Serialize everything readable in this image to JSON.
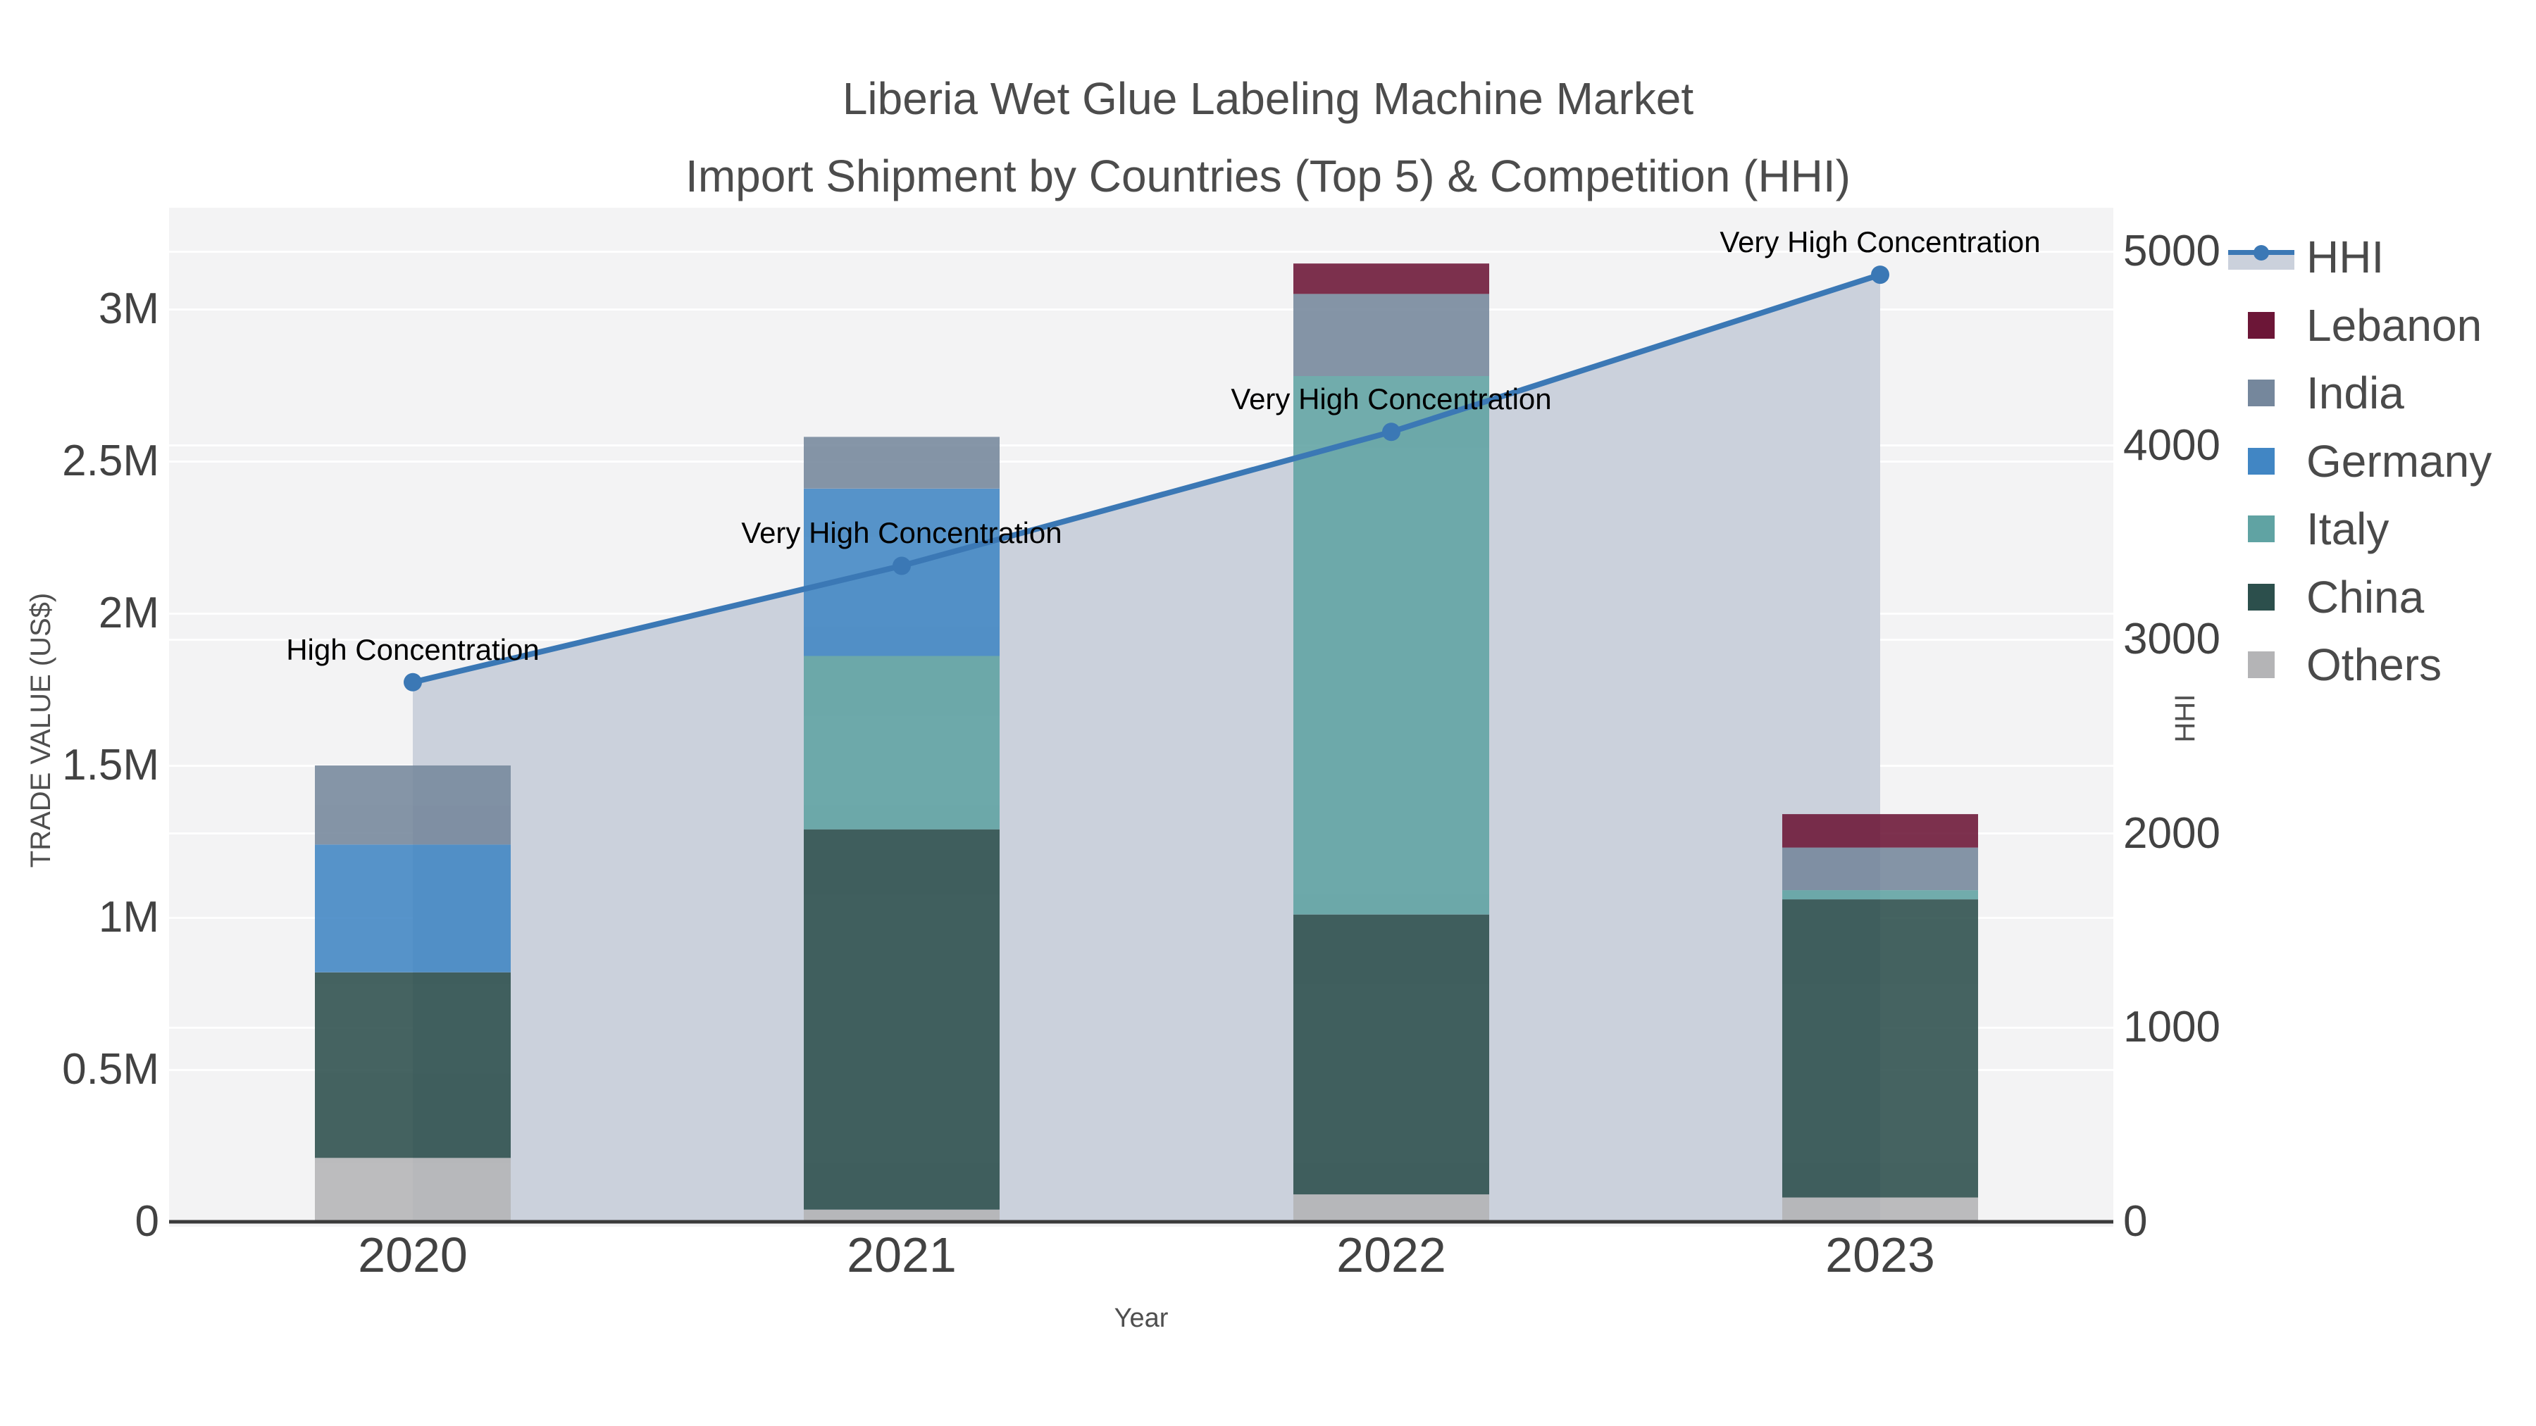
{
  "title": {
    "line1": "Liberia Wet Glue Labeling Machine Market",
    "line2": "Import Shipment by Countries (Top 5) & Competition (HHI)"
  },
  "x_axis": {
    "title": "Year",
    "categories": [
      "2020",
      "2021",
      "2022",
      "2023"
    ]
  },
  "y_left": {
    "title": "TRADE VALUE (US$)",
    "tick_labels": [
      "0",
      "0.5M",
      "1M",
      "1.5M",
      "2M",
      "2.5M",
      "3M"
    ],
    "tick_values_musd": [
      0,
      0.5,
      1,
      1.5,
      2,
      2.5,
      3
    ]
  },
  "y_right": {
    "title": "HHI",
    "tick_labels": [
      "0",
      "1000",
      "2000",
      "3000",
      "4000",
      "5000"
    ],
    "tick_values": [
      0,
      1000,
      2000,
      3000,
      4000,
      5000
    ]
  },
  "legend": {
    "items": [
      {
        "label": "HHI",
        "kind": "line"
      },
      {
        "label": "Lebanon",
        "kind": "box"
      },
      {
        "label": "India",
        "kind": "box"
      },
      {
        "label": "Germany",
        "kind": "box"
      },
      {
        "label": "Italy",
        "kind": "box"
      },
      {
        "label": "China",
        "kind": "box"
      },
      {
        "label": "Others",
        "kind": "box"
      }
    ]
  },
  "colors": {
    "hhi_line": "#3B78B5",
    "area_fill": "#CBD1DC",
    "plot_bg": "#F3F3F4",
    "axis_line": "#3A3A3A",
    "annotation": "#000000",
    "Lebanon": "#6C1637",
    "India": "#75879C",
    "Germany": "#4186C4",
    "Italy": "#60A3A3",
    "China": "#2C4F4C",
    "Others": "#B4B4B6"
  },
  "chart_data": {
    "type": "stacked-bar+line",
    "title": "Liberia Wet Glue Labeling Machine Market — Import Shipment by Countries (Top 5) & Competition (HHI)",
    "xlabel": "Year",
    "ylabel_left": "TRADE VALUE (US$)",
    "ylabel_right": "HHI",
    "categories": [
      "2020",
      "2021",
      "2022",
      "2023"
    ],
    "bar_series_bottom_to_top": [
      {
        "name": "Others",
        "values_musd": [
          0.21,
          0.04,
          0.09,
          0.08
        ]
      },
      {
        "name": "China",
        "values_musd": [
          0.61,
          1.25,
          0.92,
          0.98
        ]
      },
      {
        "name": "Italy",
        "values_musd": [
          0.0,
          0.57,
          1.77,
          0.03
        ]
      },
      {
        "name": "Germany",
        "values_musd": [
          0.42,
          0.55,
          0.0,
          0.0
        ]
      },
      {
        "name": "India",
        "values_musd": [
          0.26,
          0.17,
          0.27,
          0.14
        ]
      },
      {
        "name": "Lebanon",
        "values_musd": [
          0.0,
          0.0,
          0.1,
          0.11
        ]
      }
    ],
    "bar_totals_musd": [
      1.5,
      2.58,
      3.15,
      1.34
    ],
    "line_series": {
      "name": "HHI",
      "axis": "right",
      "values": [
        2780,
        3380,
        4070,
        4880
      ],
      "area_fill_to_zero": true
    },
    "annotations": [
      "High Concentration",
      "Very High Concentration",
      "Very High Concentration",
      "Very High Concentration"
    ],
    "ylim_left_musd": [
      0,
      3.33
    ],
    "ylim_right": [
      0,
      5225
    ],
    "grid": true,
    "legend_position": "right"
  }
}
